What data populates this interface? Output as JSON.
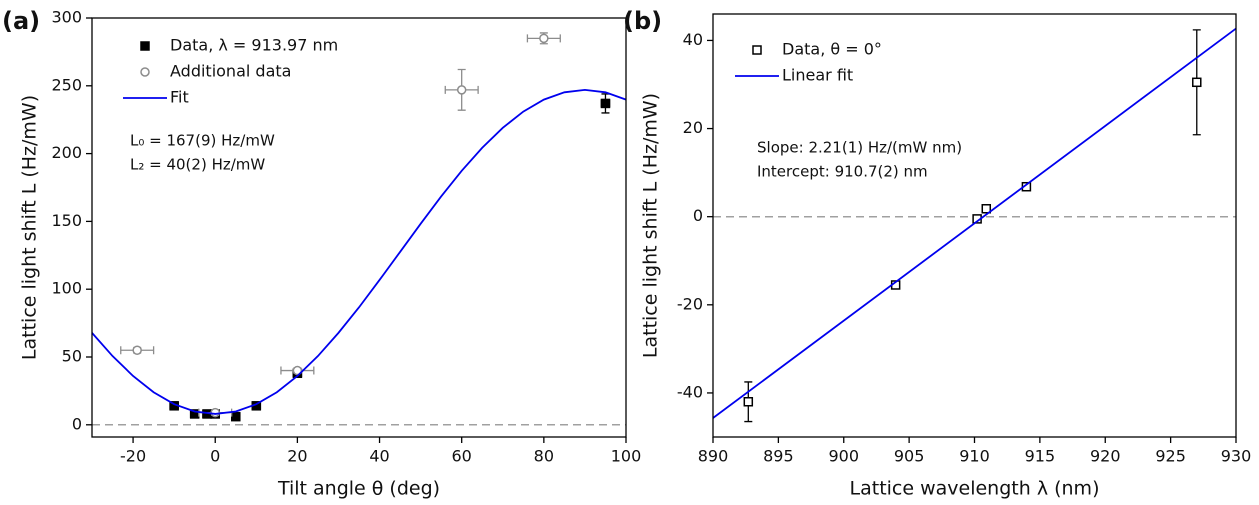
{
  "chart_data": [
    {
      "type": "scatter",
      "panel": "(a)",
      "xlabel": "Tilt angle θ (deg)",
      "ylabel": "Lattice light shift L (Hz/mW)",
      "xlim": [
        -30,
        100
      ],
      "xticks": [
        -20,
        0,
        20,
        40,
        60,
        80,
        100
      ],
      "ylim": [
        -9,
        300
      ],
      "yticks": [
        0,
        50,
        100,
        150,
        200,
        250,
        300
      ],
      "hline": 0,
      "legend": "upper left",
      "annotations": [
        "L₀ = 167(9) Hz/mW",
        "L₂ = 40(2) Hz/mW"
      ],
      "series": [
        {
          "name": "Data, λ = 913.97 nm",
          "color": "#000000",
          "marker": "square",
          "x": [
            -10,
            -5,
            -2,
            0,
            5,
            10,
            20,
            95
          ],
          "values": [
            14,
            8,
            8,
            8,
            6,
            14,
            38,
            237
          ],
          "xerr": [
            1,
            1,
            1,
            1,
            1,
            1,
            1,
            1
          ],
          "yerr": [
            1.5,
            1.5,
            1.5,
            1.5,
            1.5,
            1.5,
            2,
            7
          ]
        },
        {
          "name": "Additional data",
          "color": "#8c8c8c",
          "marker": "circle",
          "x": [
            -19,
            0,
            20,
            60,
            80
          ],
          "values": [
            55,
            9,
            40,
            247,
            285
          ],
          "xerr": [
            4,
            4,
            4,
            4,
            4
          ],
          "yerr": [
            2,
            2,
            2,
            15,
            4
          ]
        },
        {
          "name": "Fit",
          "color": "#0000ee",
          "marker": null,
          "x": [
            -30,
            -25,
            -20,
            -15,
            -10,
            -5,
            0,
            5,
            10,
            15,
            20,
            25,
            30,
            35,
            40,
            45,
            50,
            55,
            60,
            65,
            70,
            75,
            80,
            85,
            90,
            95,
            100
          ],
          "values": [
            67.8,
            50.7,
            36.0,
            24.0,
            15.2,
            9.8,
            8.0,
            9.8,
            15.2,
            24.0,
            36.0,
            50.7,
            67.8,
            86.6,
            106.8,
            127.5,
            148.2,
            168.4,
            187.3,
            204.3,
            219.0,
            231.0,
            239.8,
            245.2,
            247.0,
            245.2,
            239.8
          ]
        }
      ]
    },
    {
      "type": "scatter",
      "panel": "(b)",
      "xlabel": "Lattice wavelength λ (nm)",
      "ylabel": "Lattice light shift L (Hz/mW)",
      "xlim": [
        890,
        930
      ],
      "xticks": [
        890,
        895,
        900,
        905,
        910,
        915,
        920,
        925,
        930
      ],
      "ylim": [
        -50,
        46
      ],
      "yticks": [
        -40,
        -20,
        0,
        20,
        40
      ],
      "hline": 0,
      "legend": "upper left",
      "annotations": [
        "Slope: 2.21(1) Hz/(mW nm)",
        "Intercept: 910.7(2) nm"
      ],
      "series": [
        {
          "name": "Data, θ = 0°",
          "color": "#000000",
          "marker": "square",
          "x": [
            892.7,
            903.97,
            910.2,
            910.9,
            913.97,
            927.0
          ],
          "values": [
            -42,
            -15.5,
            -0.5,
            1.8,
            6.8,
            30.5
          ],
          "yerr": [
            4.5,
            0.8,
            0.5,
            0.8,
            0.7,
            11.9
          ]
        },
        {
          "name": "Linear fit",
          "color": "#0000ee",
          "marker": null,
          "x": [
            890,
            930
          ],
          "values": [
            -45.7,
            42.7
          ]
        }
      ]
    }
  ]
}
